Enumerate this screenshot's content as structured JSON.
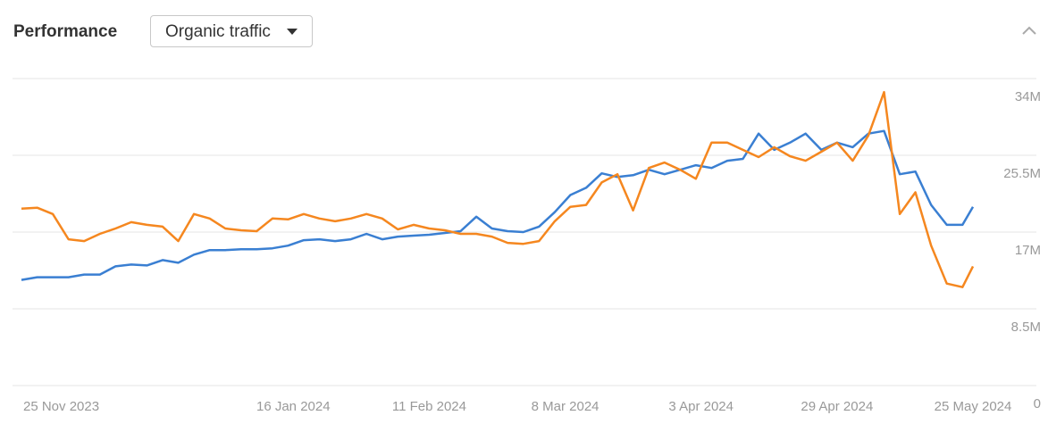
{
  "header": {
    "title": "Performance",
    "dropdown": "Organic traffic"
  },
  "chart_data": {
    "type": "line",
    "x": [
      "2023-11-25",
      "2023-11-28",
      "2023-12-01",
      "2023-12-04",
      "2023-12-07",
      "2023-12-10",
      "2023-12-13",
      "2023-12-16",
      "2023-12-19",
      "2023-12-22",
      "2023-12-25",
      "2023-12-28",
      "2023-12-31",
      "2024-01-03",
      "2024-01-06",
      "2024-01-09",
      "2024-01-12",
      "2024-01-15",
      "2024-01-18",
      "2024-01-21",
      "2024-01-24",
      "2024-01-27",
      "2024-01-30",
      "2024-02-02",
      "2024-02-05",
      "2024-02-08",
      "2024-02-11",
      "2024-02-14",
      "2024-02-17",
      "2024-02-20",
      "2024-02-23",
      "2024-02-26",
      "2024-02-29",
      "2024-03-03",
      "2024-03-06",
      "2024-03-09",
      "2024-03-12",
      "2024-03-15",
      "2024-03-18",
      "2024-03-21",
      "2024-03-24",
      "2024-03-27",
      "2024-03-30",
      "2024-04-02",
      "2024-04-05",
      "2024-04-08",
      "2024-04-11",
      "2024-04-14",
      "2024-04-17",
      "2024-04-20",
      "2024-04-23",
      "2024-04-26",
      "2024-04-29",
      "2024-05-02",
      "2024-05-05",
      "2024-05-08",
      "2024-05-11",
      "2024-05-14",
      "2024-05-17",
      "2024-05-20",
      "2024-05-23",
      "2024-05-25"
    ],
    "series": [
      {
        "color": "#3a7fd2",
        "values": [
          11.7,
          12.0,
          12.0,
          12.0,
          12.3,
          12.3,
          13.2,
          13.4,
          13.3,
          13.9,
          13.6,
          14.5,
          15.0,
          15.0,
          15.1,
          15.1,
          15.2,
          15.5,
          16.1,
          16.2,
          16.0,
          16.2,
          16.8,
          16.2,
          16.5,
          16.6,
          16.7,
          16.9,
          17.1,
          18.7,
          17.4,
          17.1,
          17.0,
          17.6,
          19.2,
          21.1,
          21.9,
          23.5,
          23.1,
          23.3,
          23.9,
          23.4,
          23.9,
          24.4,
          24.1,
          24.9,
          25.1,
          27.9,
          26.1,
          26.9,
          27.9,
          26.1,
          26.9,
          26.4,
          27.9,
          28.2,
          23.4,
          23.7,
          20.0,
          17.8,
          17.8,
          19.8
        ]
      },
      {
        "color": "#f5871f",
        "values": [
          19.6,
          19.7,
          19.0,
          16.2,
          16.0,
          16.8,
          17.4,
          18.1,
          17.8,
          17.6,
          16.0,
          19.0,
          18.5,
          17.4,
          17.2,
          17.1,
          18.5,
          18.4,
          19.0,
          18.5,
          18.2,
          18.5,
          19.0,
          18.5,
          17.3,
          17.8,
          17.4,
          17.2,
          16.8,
          16.8,
          16.5,
          15.8,
          15.7,
          16.0,
          18.2,
          19.8,
          20.0,
          22.5,
          23.4,
          19.4,
          24.1,
          24.7,
          23.9,
          22.9,
          26.9,
          26.9,
          26.1,
          25.3,
          26.4,
          25.4,
          24.9,
          25.9,
          26.9,
          24.9,
          27.7,
          32.5,
          19.0,
          21.4,
          15.5,
          11.3,
          10.9,
          13.2
        ]
      }
    ],
    "xlim": [
      "2023-11-25",
      "2024-05-25"
    ],
    "xticks": [
      {
        "value": "2023-11-25",
        "label": "25 Nov 2023"
      },
      {
        "value": "2024-01-16",
        "label": "16 Jan 2024"
      },
      {
        "value": "2024-02-11",
        "label": "11 Feb 2024"
      },
      {
        "value": "2024-03-08",
        "label": "8 Mar 2024"
      },
      {
        "value": "2024-04-03",
        "label": "3 Apr 2024"
      },
      {
        "value": "2024-04-29",
        "label": "29 Apr 2024"
      },
      {
        "value": "2024-05-25",
        "label": "25 May 2024"
      }
    ],
    "ylim": [
      0,
      34
    ],
    "yticks": [
      0,
      {
        "value": 8.5,
        "label": "8.5M"
      },
      {
        "value": 17,
        "label": "17M"
      },
      {
        "value": 25.5,
        "label": "25.5M"
      },
      {
        "value": 34,
        "label": "34M"
      }
    ],
    "grid": true
  }
}
